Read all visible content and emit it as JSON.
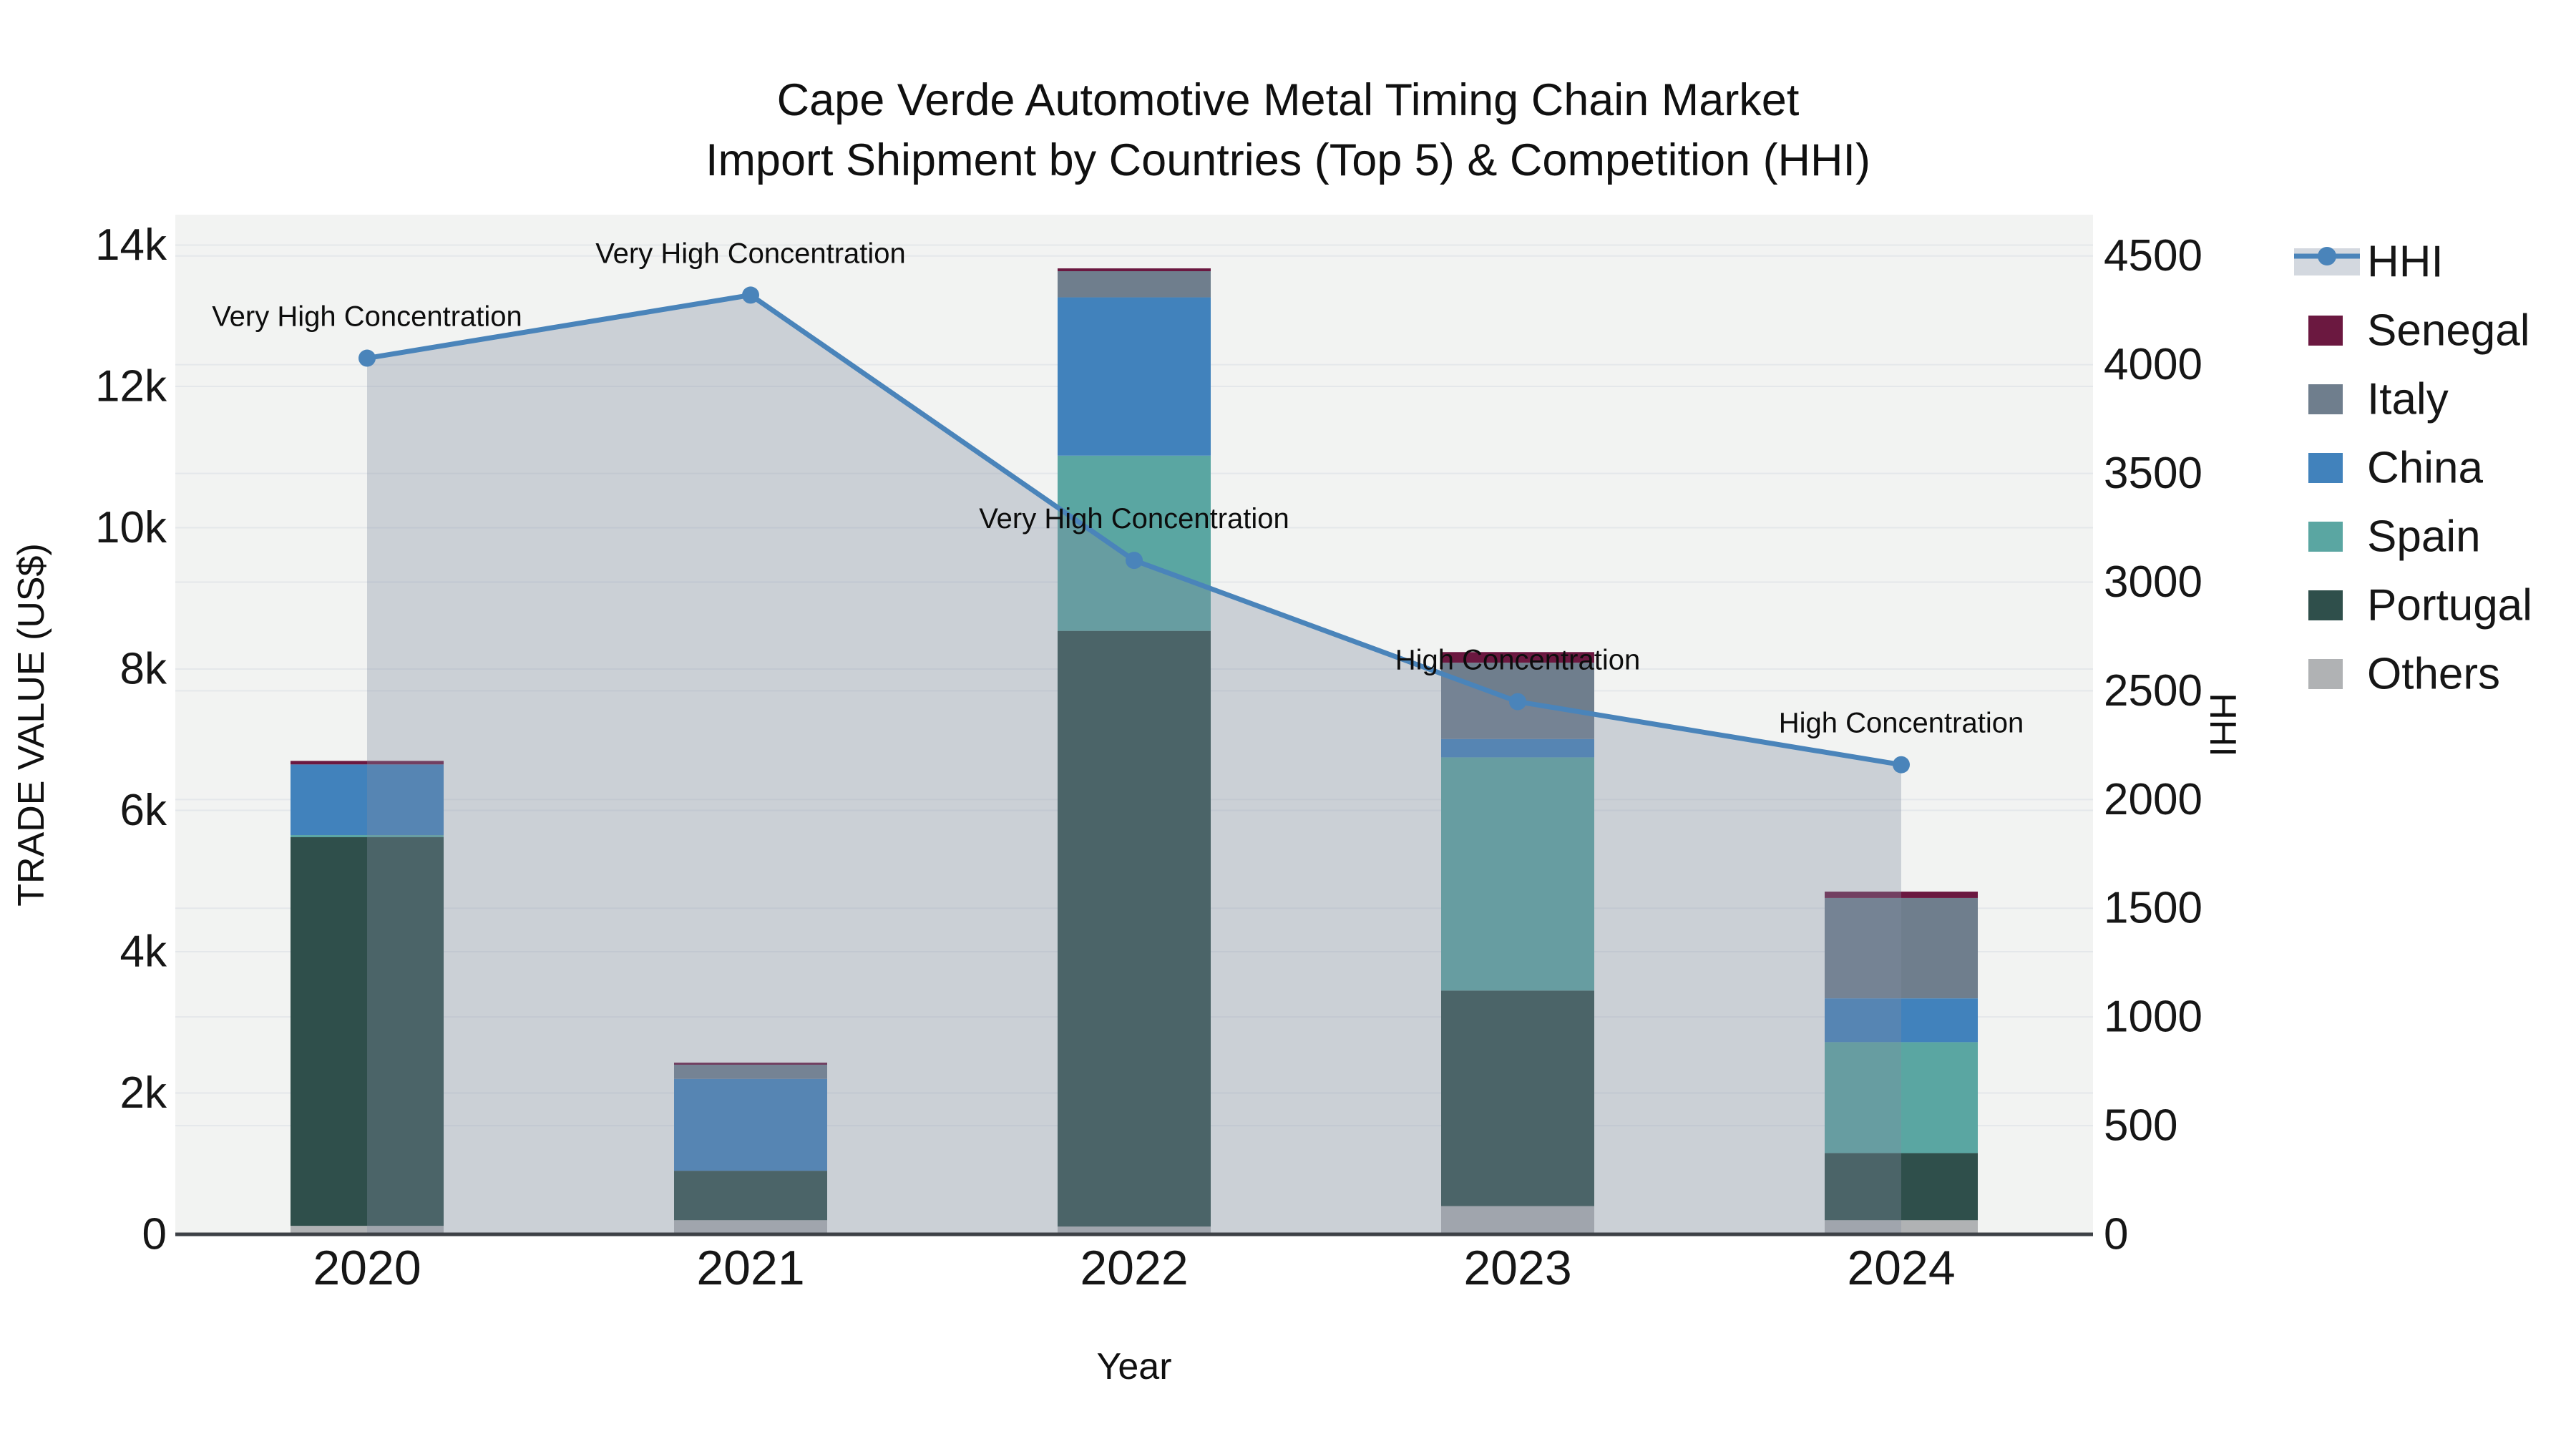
{
  "title": {
    "line1": "Cape Verde Automotive Metal Timing Chain Market",
    "line2": "Import Shipment by Countries (Top 5) & Competition (HHI)"
  },
  "chart_data": {
    "type": "bar",
    "subtype": "stacked-bars-with-line",
    "categories": [
      "2020",
      "2021",
      "2022",
      "2023",
      "2024"
    ],
    "xlabel": "Year",
    "series": [
      {
        "name": "Others",
        "color": "#b0b2b4",
        "values": [
          120,
          200,
          110,
          400,
          200
        ]
      },
      {
        "name": "Portugal",
        "color": "#2f4f4b",
        "values": [
          5500,
          700,
          8430,
          3050,
          950
        ]
      },
      {
        "name": "Spain",
        "color": "#5aa6a2",
        "values": [
          30,
          0,
          2480,
          3300,
          1570
        ]
      },
      {
        "name": "China",
        "color": "#4182bc",
        "values": [
          1000,
          1300,
          2240,
          260,
          620
        ]
      },
      {
        "name": "Italy",
        "color": "#6f7e8d",
        "values": [
          0,
          200,
          370,
          1080,
          1420
        ]
      },
      {
        "name": "Senegal",
        "color": "#6b1840",
        "values": [
          50,
          30,
          40,
          150,
          90
        ]
      }
    ],
    "line_series": {
      "name": "HHI",
      "values": [
        4030,
        4320,
        3100,
        2450,
        2160
      ],
      "color": "#4a84ba",
      "fill_color": "rgba(128,142,161,0.34)",
      "legend_band_color": "#d3d8df"
    },
    "annotations": [
      {
        "year": "2020",
        "text": "Very High Concentration"
      },
      {
        "year": "2021",
        "text": "Very High Concentration"
      },
      {
        "year": "2022",
        "text": "Very High Concentration"
      },
      {
        "year": "2023",
        "text": "High Concentration"
      },
      {
        "year": "2024",
        "text": "High Concentration"
      }
    ],
    "left_axis": {
      "title": "TRADE VALUE (US$)",
      "ticks": [
        {
          "value": 0,
          "label": "0"
        },
        {
          "value": 2000,
          "label": "2k"
        },
        {
          "value": 4000,
          "label": "4k"
        },
        {
          "value": 6000,
          "label": "6k"
        },
        {
          "value": 8000,
          "label": "8k"
        },
        {
          "value": 10000,
          "label": "10k"
        },
        {
          "value": 12000,
          "label": "12k"
        },
        {
          "value": 14000,
          "label": "14k"
        }
      ],
      "range": [
        0,
        14430
      ]
    },
    "right_axis": {
      "title": "HHI",
      "ticks": [
        {
          "value": 0,
          "label": "0"
        },
        {
          "value": 500,
          "label": "500"
        },
        {
          "value": 1000,
          "label": "1000"
        },
        {
          "value": 1500,
          "label": "1500"
        },
        {
          "value": 2000,
          "label": "2000"
        },
        {
          "value": 2500,
          "label": "2500"
        },
        {
          "value": 3000,
          "label": "3000"
        },
        {
          "value": 3500,
          "label": "3500"
        },
        {
          "value": 4000,
          "label": "4000"
        },
        {
          "value": 4500,
          "label": "4500"
        }
      ],
      "range": [
        0,
        4690
      ]
    },
    "legend": [
      "HHI",
      "Senegal",
      "Italy",
      "China",
      "Spain",
      "Portugal",
      "Others"
    ],
    "grid": true,
    "legend_position": "right",
    "plot_bg": "#f2f3f2",
    "grid_color": "#e4e7ea",
    "axis_line_color": "#3d4146",
    "text_color": "#161616"
  }
}
